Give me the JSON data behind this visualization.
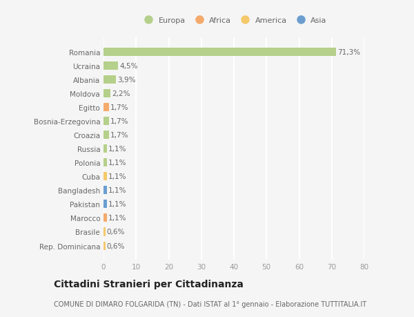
{
  "categories": [
    "Rep. Dominicana",
    "Brasile",
    "Marocco",
    "Pakistan",
    "Bangladesh",
    "Cuba",
    "Polonia",
    "Russia",
    "Croazia",
    "Bosnia-Erzegovina",
    "Egitto",
    "Moldova",
    "Albania",
    "Ucraina",
    "Romania"
  ],
  "values": [
    0.6,
    0.6,
    1.1,
    1.1,
    1.1,
    1.1,
    1.1,
    1.1,
    1.7,
    1.7,
    1.7,
    2.2,
    3.9,
    4.5,
    71.3
  ],
  "colors": [
    "#f5c96b",
    "#f5c96b",
    "#f5a96b",
    "#6b9ecf",
    "#6b9ecf",
    "#f5c96b",
    "#b5d08a",
    "#b5d08a",
    "#b5d08a",
    "#b5d08a",
    "#f5a96b",
    "#b5d08a",
    "#b5d08a",
    "#b5d08a",
    "#b5d08a"
  ],
  "labels": [
    "0,6%",
    "0,6%",
    "1,1%",
    "1,1%",
    "1,1%",
    "1,1%",
    "1,1%",
    "1,1%",
    "1,7%",
    "1,7%",
    "1,7%",
    "2,2%",
    "3,9%",
    "4,5%",
    "71,3%"
  ],
  "legend": [
    {
      "label": "Europa",
      "color": "#b5d08a"
    },
    {
      "label": "Africa",
      "color": "#f5a96b"
    },
    {
      "label": "America",
      "color": "#f5c96b"
    },
    {
      "label": "Asia",
      "color": "#6b9ecf"
    }
  ],
  "xlim": [
    0,
    80
  ],
  "xticks": [
    0,
    10,
    20,
    30,
    40,
    50,
    60,
    70,
    80
  ],
  "title": "Cittadini Stranieri per Cittadinanza",
  "subtitle": "COMUNE DI DIMARO FOLGARIDA (TN) - Dati ISTAT al 1° gennaio - Elaborazione TUTTITALIA.IT",
  "bg_color": "#f5f5f5",
  "grid_color": "#ffffff",
  "label_fontsize": 7.5,
  "tick_fontsize": 7.5,
  "title_fontsize": 10,
  "subtitle_fontsize": 7,
  "legend_fontsize": 8
}
